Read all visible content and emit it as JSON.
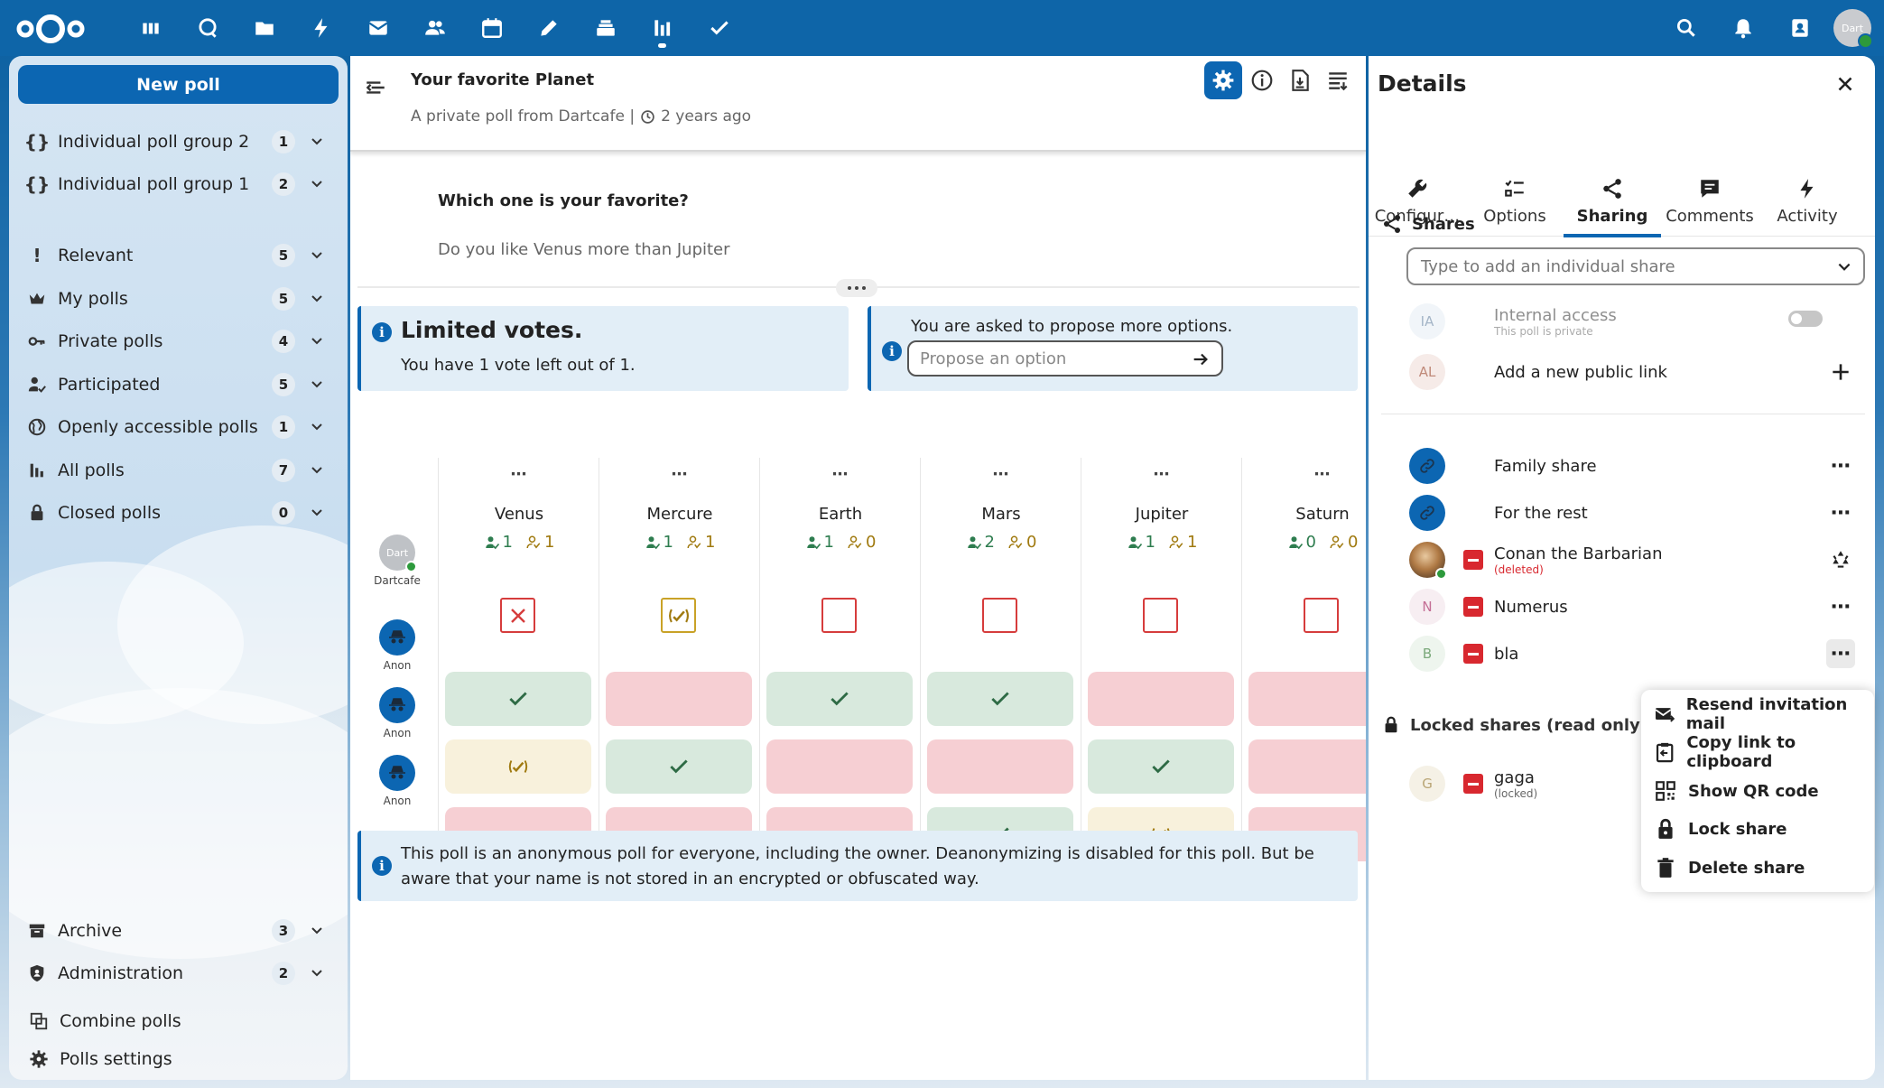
{
  "sidebar": {
    "new_poll": "New poll",
    "items": [
      {
        "label": "Individual poll group 2",
        "count": "1"
      },
      {
        "label": "Individual poll group 1",
        "count": "2"
      },
      {
        "label": "Relevant",
        "count": "5"
      },
      {
        "label": "My polls",
        "count": "5"
      },
      {
        "label": "Private polls",
        "count": "4"
      },
      {
        "label": "Participated",
        "count": "5"
      },
      {
        "label": "Openly accessible polls",
        "count": "1"
      },
      {
        "label": "All polls",
        "count": "7"
      },
      {
        "label": "Closed polls",
        "count": "0"
      },
      {
        "label": "Archive",
        "count": "3"
      },
      {
        "label": "Administration",
        "count": "2"
      }
    ],
    "combine": "Combine polls",
    "settings": "Polls settings"
  },
  "topbar": {
    "avatar_text": "Dart"
  },
  "poll": {
    "title": "Your favorite Planet",
    "subtitle": "A private poll from Dartcafe |",
    "age": "2 years ago",
    "question": "Which one is your favorite?",
    "description": "Do you like Venus more than Jupiter",
    "limited_title": "Limited votes.",
    "limited_text": "You have 1 vote left out of 1.",
    "propose_title": "You are asked to propose more options.",
    "propose_placeholder": "Propose an option",
    "anon_notice": "This poll is an anonymous poll for everyone, including the owner. Deanonymizing is disabled for this poll. But be aware that your name is not stored in an encrypted or obfuscated way.",
    "owner_name": "Dartcafe",
    "owner_avatar": "Dart",
    "anon_label": "Anon",
    "options": [
      {
        "name": "Venus",
        "yes": "1",
        "maybe": "1"
      },
      {
        "name": "Mercure",
        "yes": "1",
        "maybe": "1"
      },
      {
        "name": "Earth",
        "yes": "1",
        "maybe": "0"
      },
      {
        "name": "Mars",
        "yes": "2",
        "maybe": "0"
      },
      {
        "name": "Jupiter",
        "yes": "1",
        "maybe": "1"
      },
      {
        "name": "Saturn",
        "yes": "0",
        "maybe": "0"
      }
    ],
    "owner_votes": [
      "no",
      "maybe",
      "empty",
      "empty",
      "empty",
      "empty"
    ],
    "anon_votes": [
      [
        "yes",
        "no",
        "yes",
        "yes",
        "no",
        "no"
      ],
      [
        "maybe",
        "yes",
        "no",
        "no",
        "yes",
        "no"
      ],
      [
        "no",
        "no",
        "no",
        "yes",
        "maybe",
        "no"
      ]
    ]
  },
  "details": {
    "title": "Details",
    "tabs": [
      "Configur…",
      "Options",
      "Sharing",
      "Comments",
      "Activity"
    ],
    "shares_heading": "Shares",
    "share_placeholder": "Type to add an individual share",
    "internal_access": "Internal access",
    "internal_sub": "This poll is private",
    "add_public_link": "Add a new public link",
    "shares": [
      {
        "name": "Family share",
        "initials": ""
      },
      {
        "name": "For the rest",
        "initials": ""
      },
      {
        "name": "Conan the Barbarian",
        "initials": "",
        "sub": "(deleted)"
      },
      {
        "name": "Numerus",
        "initials": "N"
      },
      {
        "name": "bla",
        "initials": "B"
      }
    ],
    "ia_initials": "IA",
    "al_initials": "AL",
    "locked_heading": "Locked shares (read only acce",
    "locked": [
      {
        "name": "gaga",
        "initials": "G",
        "sub": "(locked)"
      }
    ]
  },
  "menu": {
    "items": [
      "Resend invitation mail",
      "Copy link to clipboard",
      "Show QR code",
      "Lock share",
      "Delete share"
    ]
  },
  "colors": {
    "primary": "#0c66b2",
    "yes": "#d8e9dd",
    "no": "#f6cfd3",
    "maybe": "#f8f1dc"
  }
}
